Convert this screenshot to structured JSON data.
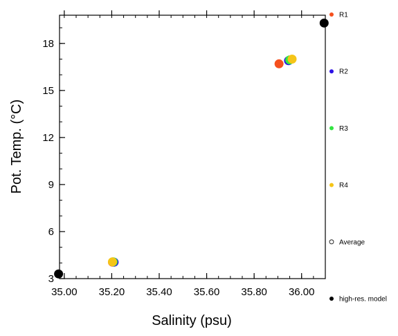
{
  "chart_data": {
    "type": "scatter",
    "title": "",
    "xlabel": "Salinity (psu)",
    "ylabel": "Pot. Temp. (°C)",
    "xlim": [
      34.98,
      36.1
    ],
    "ylim": [
      3.0,
      19.8
    ],
    "x_ticks": [
      35.0,
      35.2,
      35.4,
      35.6,
      35.8,
      36.0
    ],
    "x_tick_labels": [
      "35.00",
      "35.20",
      "35.40",
      "35.60",
      "35.80",
      "36.00"
    ],
    "y_ticks": [
      3,
      6,
      9,
      12,
      15,
      18
    ],
    "y_tick_labels": [
      "3",
      "6",
      "9",
      "12",
      "15",
      "18"
    ],
    "grid": false,
    "legend_position": "right",
    "series": [
      {
        "name": "R1",
        "color": "#f5501e",
        "points": [
          {
            "x": 35.905,
            "y": 16.7
          },
          {
            "x": 35.203,
            "y": 4.05
          }
        ]
      },
      {
        "name": "R2",
        "color": "#2d12e6",
        "points": [
          {
            "x": 35.945,
            "y": 16.9
          },
          {
            "x": 35.21,
            "y": 4.05
          }
        ]
      },
      {
        "name": "R3",
        "color": "#33e542",
        "points": [
          {
            "x": 35.95,
            "y": 16.95
          },
          {
            "x": 35.206,
            "y": 4.07
          }
        ]
      },
      {
        "name": "R4",
        "color": "#f5c518",
        "points": [
          {
            "x": 35.96,
            "y": 17.0
          },
          {
            "x": 35.203,
            "y": 4.07
          }
        ]
      },
      {
        "name": "Average",
        "color": "#000000",
        "marker": "hollow-circle",
        "points": []
      },
      {
        "name": "high-res. model",
        "color": "#000000",
        "points": [
          {
            "x": 34.976,
            "y": 3.3
          },
          {
            "x": 36.095,
            "y": 19.3
          }
        ]
      }
    ]
  }
}
